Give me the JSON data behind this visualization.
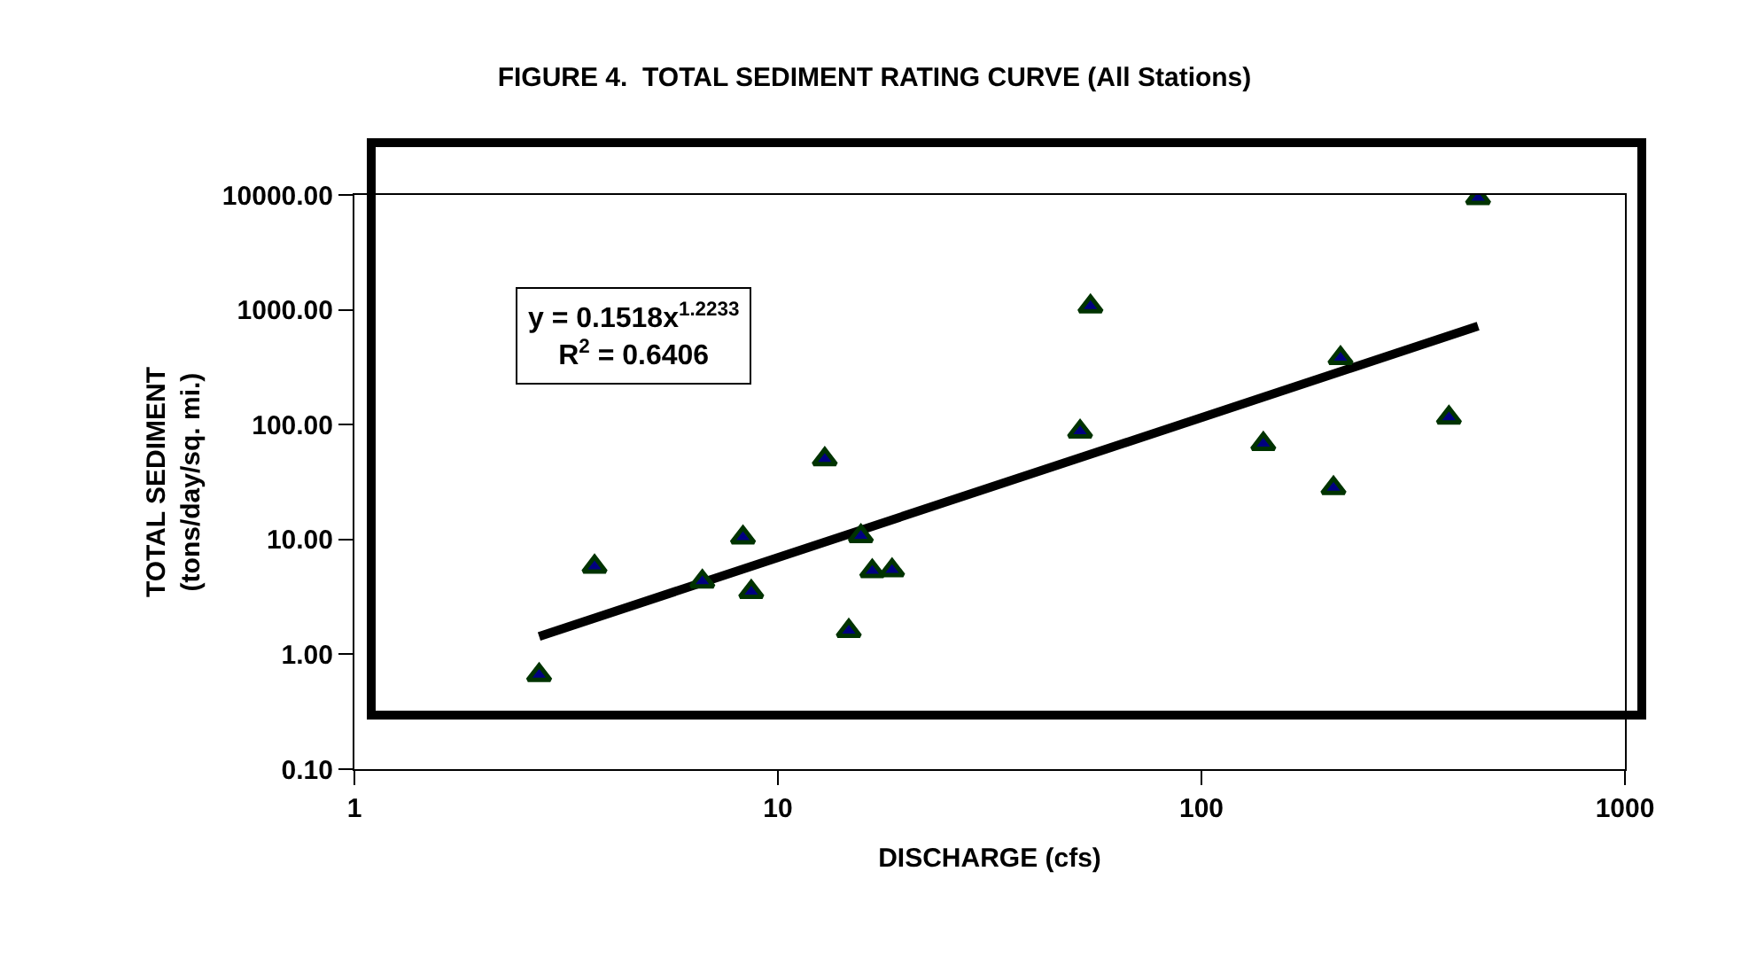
{
  "chart_data": {
    "type": "scatter",
    "title": "FIGURE 4.  TOTAL SEDIMENT RATING CURVE (All Stations)",
    "xlabel": "DISCHARGE (cfs)",
    "ylabel": "TOTAL SEDIMENT\n(tons/day/sq. mi.)",
    "annotations": [
      "y = 0.1518x$^{1.2233}$\nR$^{2}$ = 0.6406"
    ],
    "log": "xy",
    "xlim": [
      1,
      1000
    ],
    "xticks": [
      1,
      10,
      100,
      1000
    ],
    "ylim": [
      0.1,
      10000
    ],
    "yticks": [
      {
        "value": 0.1,
        "label": "0.10"
      },
      {
        "value": 1,
        "label": "1.00"
      },
      {
        "value": 10,
        "label": "10.00"
      },
      {
        "value": 100,
        "label": "100.00"
      },
      {
        "value": 1000,
        "label": "1000.00"
      },
      {
        "value": 10000,
        "label": "10000.00"
      }
    ],
    "grid": false,
    "series": [
      {
        "type": "scatter",
        "marker": "triangle",
        "color": "#003300",
        "x": [
          2.73,
          3.69,
          6.63,
          8.27,
          8.65,
          12.9,
          14.7,
          15.7,
          16.7,
          18.6,
          51.7,
          54.7,
          140,
          205,
          213,
          384,
          450
        ],
        "values": [
          0.66,
          5.8,
          4.3,
          10.4,
          3.5,
          50,
          1.6,
          10.7,
          5.3,
          5.4,
          87,
          1070,
          68,
          28,
          380,
          115,
          9400
        ]
      },
      {
        "type": "line",
        "color": "#000000",
        "x": [
          2.73,
          450
        ],
        "values": [
          1.43,
          720
        ]
      }
    ]
  }
}
